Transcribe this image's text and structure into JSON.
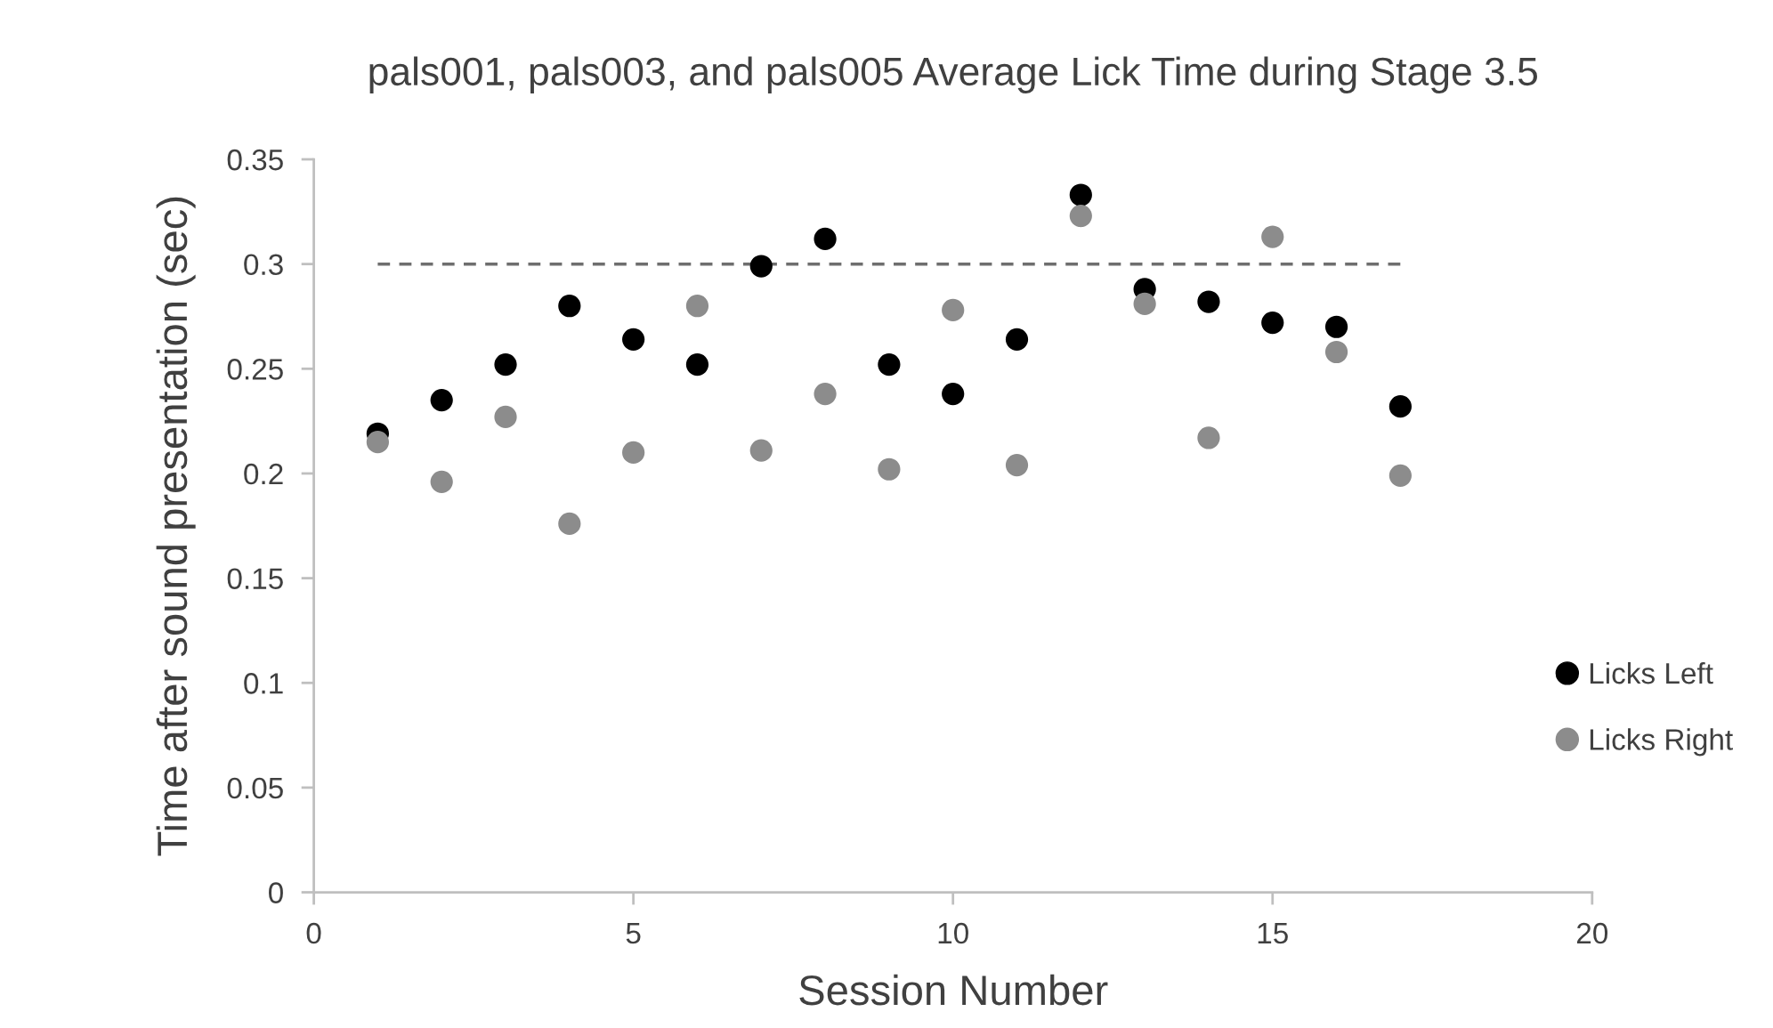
{
  "chart_data": {
    "type": "scatter",
    "title": "pals001, pals003, and pals005 Average Lick Time during Stage 3.5",
    "xlabel": "Session Number",
    "ylabel": "Time after sound presentation (sec)",
    "x": [
      1,
      2,
      3,
      4,
      5,
      6,
      7,
      8,
      9,
      10,
      11,
      12,
      13,
      14,
      15,
      16,
      17
    ],
    "series": [
      {
        "name": "Licks Left",
        "color": "#000000",
        "values": [
          0.219,
          0.235,
          0.252,
          0.28,
          0.264,
          0.252,
          0.299,
          0.312,
          0.252,
          0.238,
          0.264,
          0.333,
          0.288,
          0.282,
          0.272,
          0.27,
          0.232
        ]
      },
      {
        "name": "Licks Right",
        "color": "#8c8c8c",
        "values": [
          0.215,
          0.196,
          0.227,
          0.176,
          0.21,
          0.28,
          0.211,
          0.238,
          0.202,
          0.278,
          0.204,
          0.323,
          0.281,
          0.217,
          0.313,
          0.258,
          0.199
        ]
      },
      {
        "type": "line",
        "x": [
          1,
          17
        ],
        "values": [
          0.3,
          0.3
        ],
        "color": "#6e6e6e",
        "line_style": "dashed",
        "marker": "none"
      }
    ],
    "xlim": [
      0,
      20
    ],
    "xticks": [
      0,
      5,
      10,
      15,
      20
    ],
    "ylim": [
      0,
      0.35
    ],
    "yticks": [
      {
        "value": 0,
        "label": "0"
      },
      {
        "value": 0.05,
        "label": "0.05"
      },
      {
        "value": 0.1,
        "label": "0.1"
      },
      {
        "value": 0.15,
        "label": "0.15"
      },
      {
        "value": 0.2,
        "label": "0.2"
      },
      {
        "value": 0.25,
        "label": "0.25"
      },
      {
        "value": 0.3,
        "label": "0.3"
      },
      {
        "value": 0.35,
        "label": "0.35"
      }
    ],
    "grid": false,
    "legend": "right",
    "marker": "circle"
  }
}
